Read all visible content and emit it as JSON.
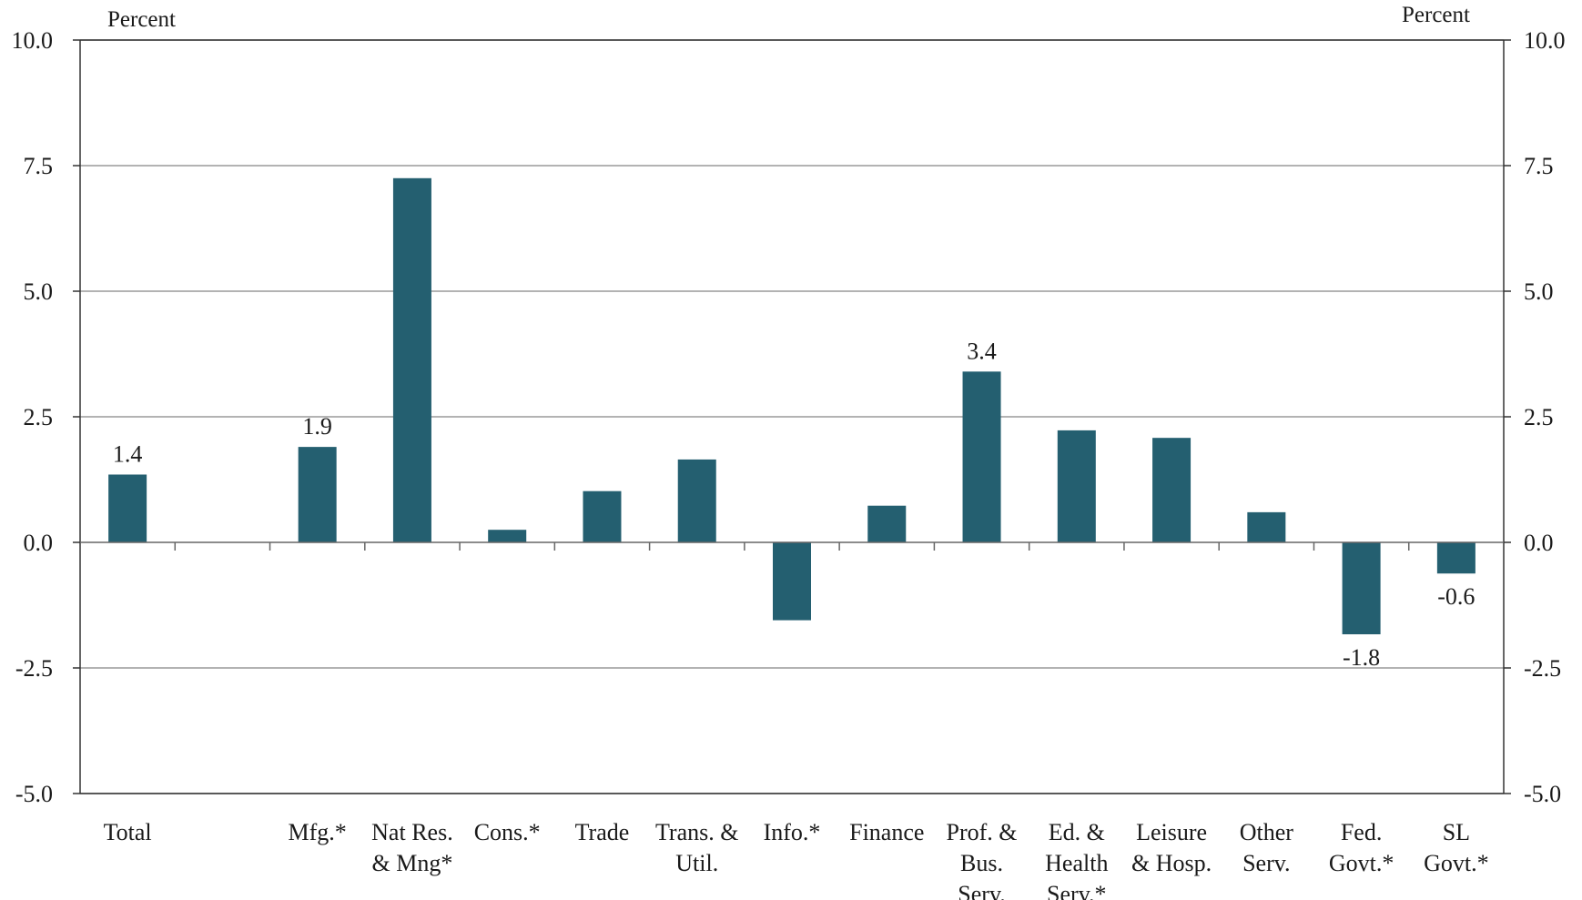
{
  "chart_data": {
    "type": "bar",
    "left_unit_label": "Percent",
    "right_unit_label": "Percent",
    "ylim": [
      -5.0,
      10.0
    ],
    "y_ticks": [
      "10.0",
      "7.5",
      "5.0",
      "2.5",
      "0.0",
      "-2.5",
      "-5.0"
    ],
    "y_tick_values": [
      10.0,
      7.5,
      5.0,
      2.5,
      0.0,
      -2.5,
      -5.0
    ],
    "grid": true,
    "bar_color": "#245f70",
    "categories": [
      [
        "Total"
      ],
      [],
      [
        "Mfg.*"
      ],
      [
        "Nat Res.",
        "& Mng*"
      ],
      [
        "Cons.*"
      ],
      [
        "Trade"
      ],
      [
        "Trans. &",
        "Util."
      ],
      [
        "Info.*"
      ],
      [
        "Finance"
      ],
      [
        "Prof. &",
        "Bus.",
        "Serv."
      ],
      [
        "Ed. &",
        "Health",
        "Serv.*"
      ],
      [
        "Leisure",
        "& Hosp."
      ],
      [
        "Other",
        "Serv."
      ],
      [
        "Fed.",
        "Govt.*"
      ],
      [
        "SL",
        "Govt.*"
      ]
    ],
    "values": [
      1.35,
      null,
      1.9,
      7.25,
      0.25,
      1.02,
      1.65,
      -1.55,
      0.73,
      3.4,
      2.23,
      2.08,
      0.6,
      -1.83,
      -0.62
    ],
    "data_labels": [
      "1.4",
      "",
      "1.9",
      "",
      "",
      "",
      "",
      "",
      "",
      "3.4",
      "",
      "",
      "",
      "-1.8",
      "-0.6"
    ]
  }
}
